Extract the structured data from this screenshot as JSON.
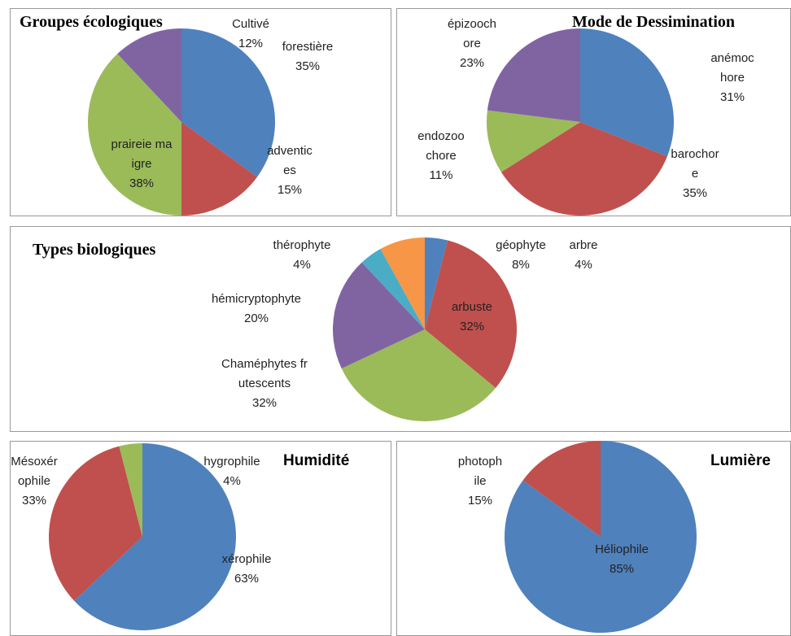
{
  "chart_data": [
    {
      "type": "pie",
      "title": "Groupes écologiques",
      "categories": [
        "forestière",
        "adventices",
        "praireie maigre",
        "Cultivé"
      ],
      "values": [
        35,
        15,
        38,
        12
      ],
      "value_labels": [
        "35%",
        "15%",
        "38%",
        "12%"
      ],
      "colors": [
        "#4f81bd",
        "#c0504d",
        "#9bbb59",
        "#8064a2"
      ]
    },
    {
      "type": "pie",
      "title": "Mode de Dessimination",
      "categories": [
        "anémochore",
        "barochore",
        "endozoochore",
        "épizoochore"
      ],
      "values": [
        31,
        35,
        11,
        23
      ],
      "value_labels": [
        "31%",
        "35%",
        "11%",
        "23%"
      ],
      "colors": [
        "#4f81bd",
        "#c0504d",
        "#9bbb59",
        "#8064a2"
      ]
    },
    {
      "type": "pie",
      "title": "Types biologiques",
      "categories": [
        "arbre",
        "arbuste",
        "Chaméphytes frutescents",
        "hémicryptophyte",
        "thérophyte",
        "géophyte"
      ],
      "values": [
        4,
        32,
        32,
        20,
        4,
        8
      ],
      "value_labels": [
        "4%",
        "32%",
        "32%",
        "20%",
        "4%",
        "8%"
      ],
      "colors": [
        "#4f81bd",
        "#c0504d",
        "#9bbb59",
        "#8064a2",
        "#4bacc6",
        "#f79646"
      ]
    },
    {
      "type": "pie",
      "title": "Humidité",
      "categories": [
        "xérophile",
        "Mésoxérophile",
        "hygrophile"
      ],
      "values": [
        63,
        33,
        4
      ],
      "value_labels": [
        "63%",
        "33%",
        "4%"
      ],
      "colors": [
        "#4f81bd",
        "#c0504d",
        "#9bbb59"
      ]
    },
    {
      "type": "pie",
      "title": "Lumière",
      "categories": [
        "Héliophile",
        "photophile"
      ],
      "values": [
        85,
        15
      ],
      "value_labels": [
        "85%",
        "15%"
      ],
      "colors": [
        "#4f81bd",
        "#c0504d"
      ]
    }
  ]
}
